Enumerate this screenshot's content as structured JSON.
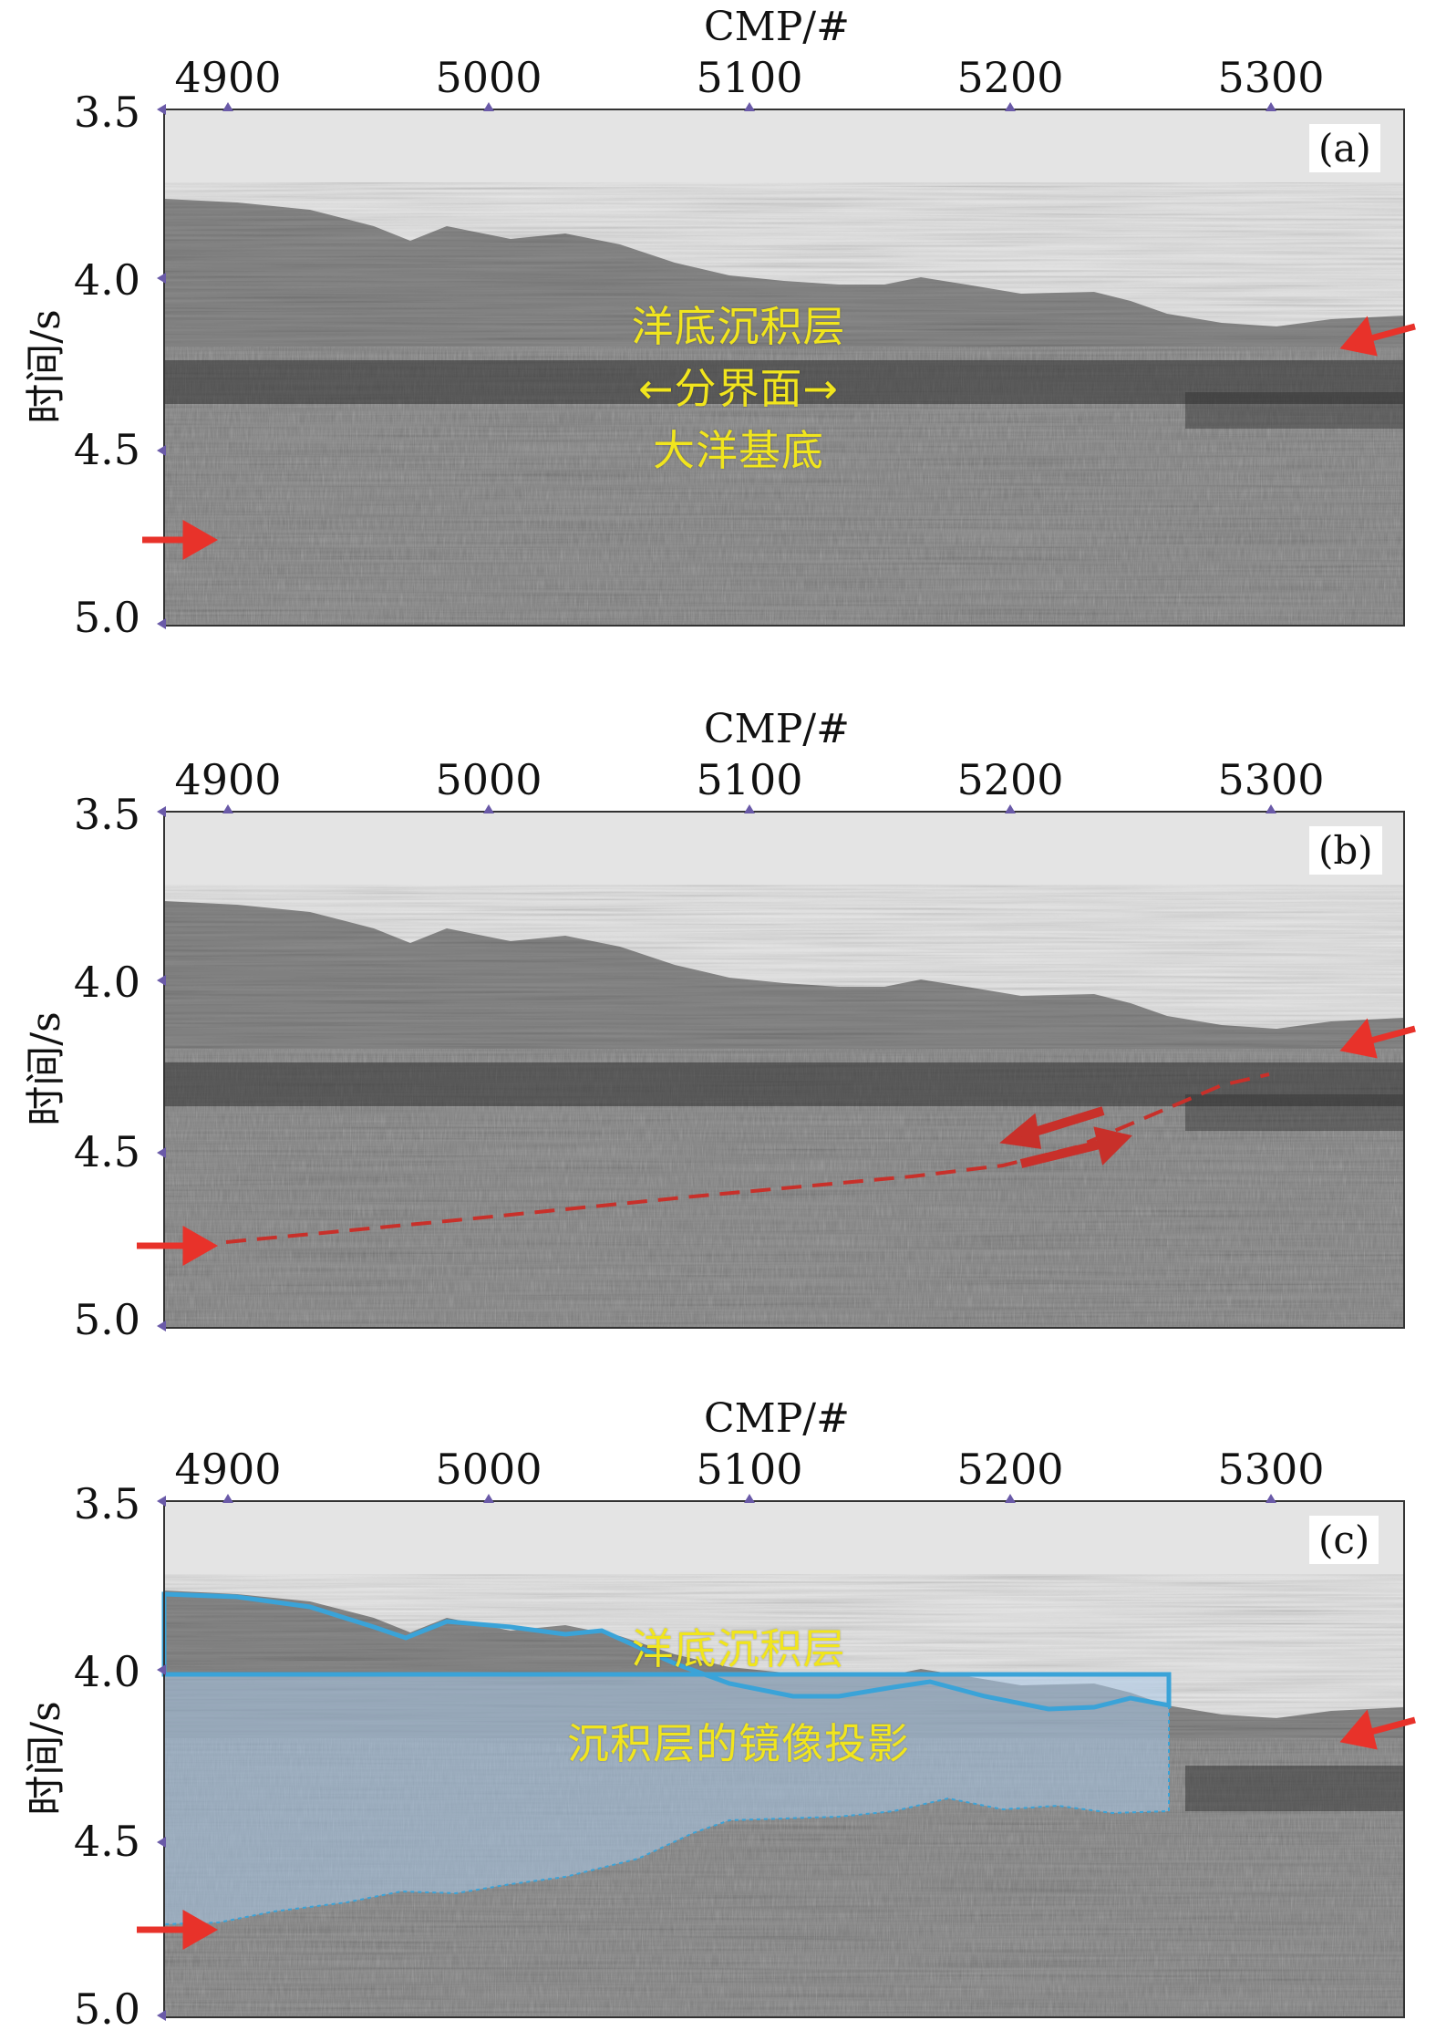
{
  "figure": {
    "x_axis_title": "CMP/#",
    "y_axis_title": "时间/s",
    "x_ticks": [
      "4900",
      "5000",
      "5100",
      "5200",
      "5300"
    ],
    "y_ticks": [
      "3.5",
      "4.0",
      "4.5",
      "5.0"
    ],
    "colors": {
      "arrow": "#e8322a",
      "boundary": "#3aa3d8",
      "annotation": "#f1e51d",
      "mirror_fill": "#a9c9e8"
    }
  },
  "panels": [
    {
      "label": "(a)",
      "annotations": [
        "洋底沉积层",
        "←分界面→",
        "大洋基底"
      ]
    },
    {
      "label": "(b)",
      "annotations": []
    },
    {
      "label": "(c)",
      "annotations": [
        "洋底沉积层",
        "沉积层的镜像投影"
      ]
    }
  ]
}
